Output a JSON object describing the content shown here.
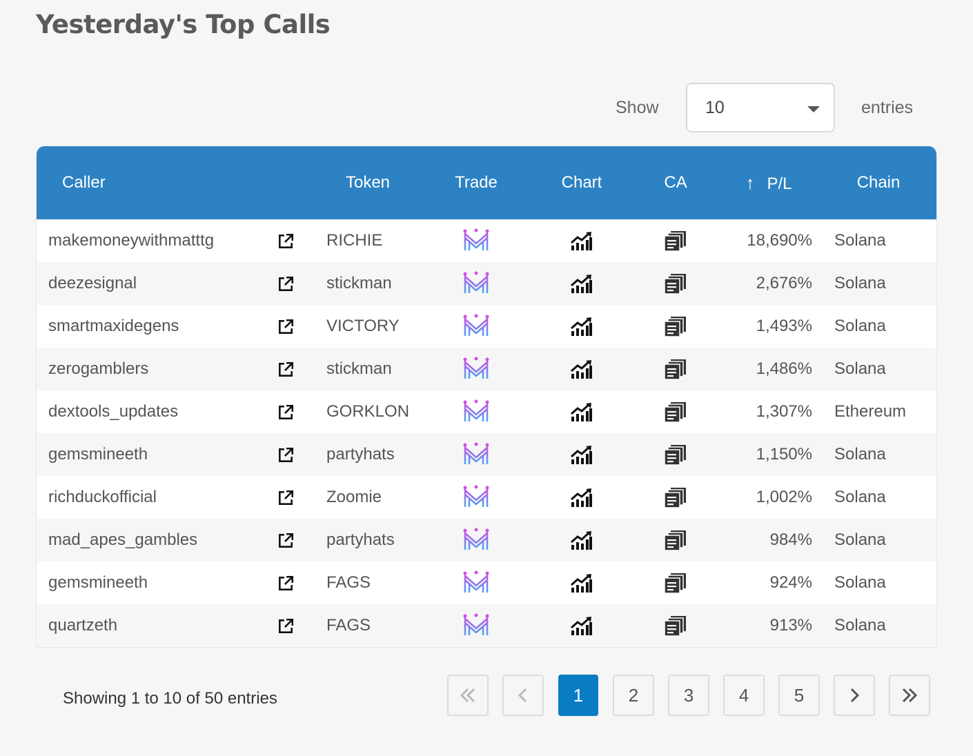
{
  "page": {
    "title": "Yesterday's Top Calls"
  },
  "length": {
    "show_label": "Show",
    "value": "10",
    "entries_label": "entries"
  },
  "table": {
    "headers": {
      "caller": "Caller",
      "token": "Token",
      "trade": "Trade",
      "chart": "Chart",
      "ca": "CA",
      "pl_sort_icon": "↑",
      "pl": "P/L",
      "chain": "Chain"
    },
    "rows": [
      {
        "caller": "makemoneywithmatttg",
        "token": "RICHIE",
        "pl": "18,690%",
        "chain": "Solana"
      },
      {
        "caller": "deezesignal",
        "token": "stickman",
        "pl": "2,676%",
        "chain": "Solana"
      },
      {
        "caller": "smartmaxidegens",
        "token": "VICTORY",
        "pl": "1,493%",
        "chain": "Solana"
      },
      {
        "caller": "zerogamblers",
        "token": "stickman",
        "pl": "1,486%",
        "chain": "Solana"
      },
      {
        "caller": "dextools_updates",
        "token": "GORKLON",
        "pl": "1,307%",
        "chain": "Ethereum"
      },
      {
        "caller": "gemsmineeth",
        "token": "partyhats",
        "pl": "1,150%",
        "chain": "Solana"
      },
      {
        "caller": "richduckofficial",
        "token": "Zoomie",
        "pl": "1,002%",
        "chain": "Solana"
      },
      {
        "caller": "mad_apes_gambles",
        "token": "partyhats",
        "pl": "984%",
        "chain": "Solana"
      },
      {
        "caller": "gemsmineeth",
        "token": "FAGS",
        "pl": "924%",
        "chain": "Solana"
      },
      {
        "caller": "quartzeth",
        "token": "FAGS",
        "pl": "913%",
        "chain": "Solana"
      }
    ]
  },
  "info": {
    "text": "Showing 1 to 10 of 50 entries"
  },
  "pagination": {
    "pages": [
      "1",
      "2",
      "3",
      "4",
      "5"
    ],
    "current": "1"
  },
  "icons": {
    "link": "external-link-icon",
    "trade": "trade-logo-icon",
    "chart": "chart-growth-icon",
    "ca": "copy-contract-icon"
  },
  "colors": {
    "header_bg": "#2d82c3",
    "active_page": "#0a7cc4",
    "trade_logo_pink": "#d14ee6",
    "trade_logo_blue": "#4aa8f5"
  }
}
